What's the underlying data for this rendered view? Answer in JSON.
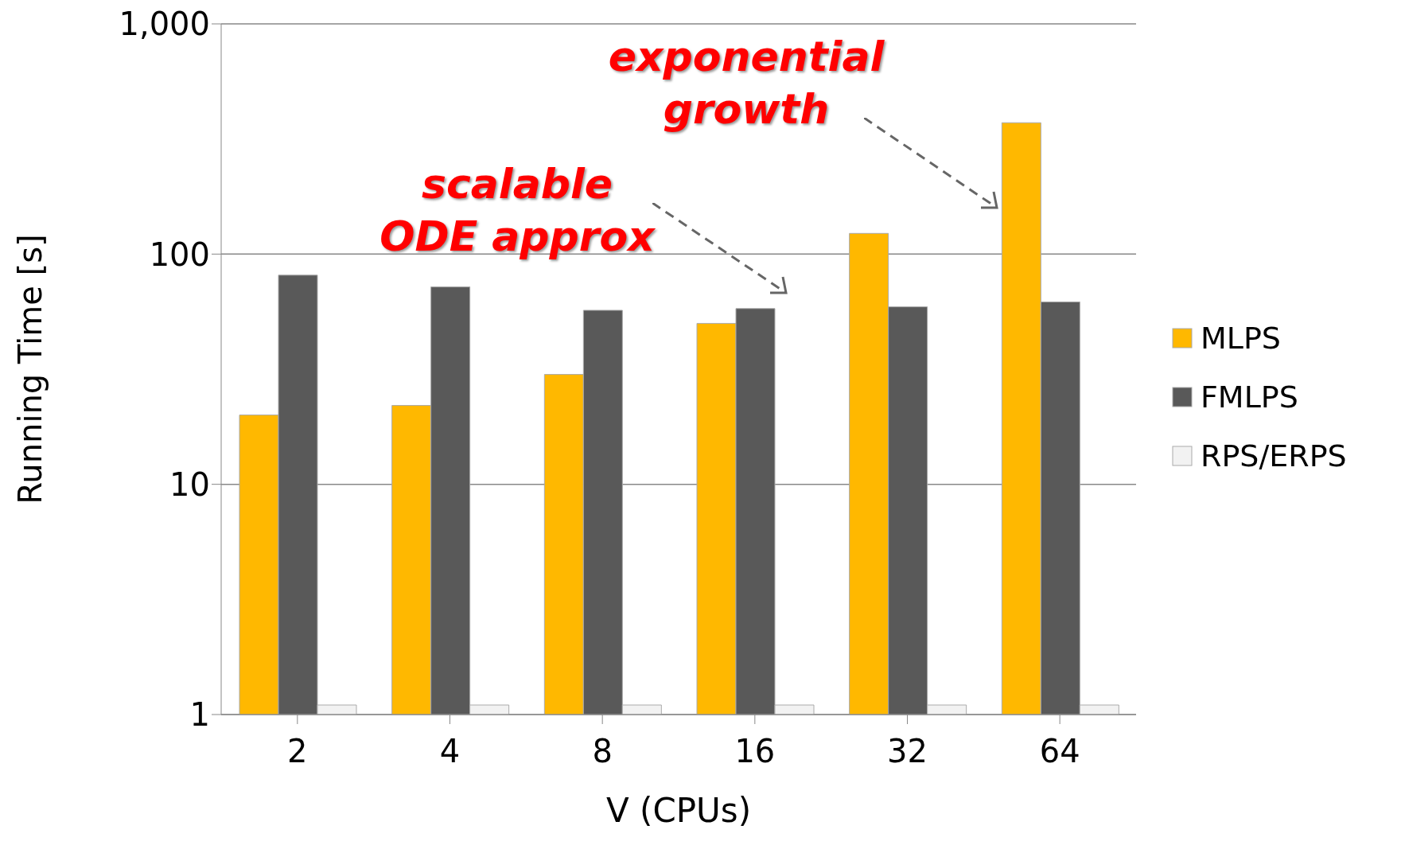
{
  "chart_data": {
    "type": "bar",
    "xlabel": "V (CPUs)",
    "ylabel": "Running Time [s]",
    "categories": [
      "2",
      "4",
      "8",
      "16",
      "32",
      "64"
    ],
    "series": [
      {
        "name": "MLPS",
        "color": "#ffb800",
        "values": [
          20,
          22,
          30,
          50,
          123,
          372
        ]
      },
      {
        "name": "FMLPS",
        "color": "#595959",
        "values": [
          81,
          72,
          57,
          58,
          59,
          62
        ]
      },
      {
        "name": "RPS/ERPS",
        "color": "#f2f2f2",
        "values": [
          1.1,
          1.1,
          1.1,
          1.1,
          1.1,
          1.1
        ]
      }
    ],
    "log": "y",
    "ylim": [
      1,
      1000
    ],
    "yticks": [
      1,
      10,
      100,
      {
        "value": 1000,
        "label": "1,000"
      }
    ],
    "grid": "y",
    "legend": "right",
    "annotations": [
      "scalable ODE approx",
      "exponential growth"
    ]
  }
}
